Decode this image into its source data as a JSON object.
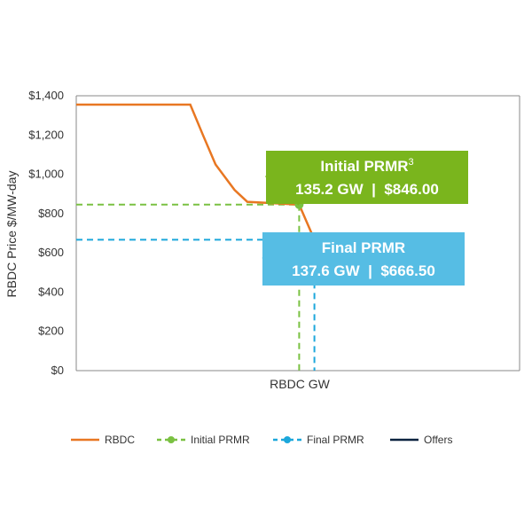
{
  "chart_data": {
    "type": "line",
    "xlabel": "RBDC GW",
    "ylabel": "RBDC Price $/MW-day",
    "ylim": [
      0,
      1400
    ],
    "xlim": [
      100,
      170
    ],
    "y_ticks": [
      0,
      200,
      400,
      600,
      800,
      1000,
      1200,
      1400
    ],
    "y_tick_labels": [
      "$0",
      "$200",
      "$400",
      "$600",
      "$800",
      "$1,000",
      "$1,200",
      "$1,400"
    ],
    "grid": false,
    "legend_position": "bottom",
    "series": [
      {
        "name": "RBDC",
        "color": "#E87722",
        "style": "solid",
        "points": [
          [
            100,
            1355
          ],
          [
            118,
            1355
          ],
          [
            120,
            1200
          ],
          [
            122,
            1050
          ],
          [
            125,
            920
          ],
          [
            127,
            860
          ],
          [
            135.2,
            846
          ],
          [
            137.6,
            666.5
          ]
        ]
      },
      {
        "name": "Offers",
        "color": "#0C2340",
        "style": "solid",
        "points": [
          [
            100,
            0
          ]
        ]
      }
    ],
    "legend": [
      {
        "label": "RBDC",
        "color": "#E87722",
        "style": "solid"
      },
      {
        "label": "Initial PRMR",
        "color": "#7AC142",
        "style": "dashed",
        "marker": "dot"
      },
      {
        "label": "Final PRMR",
        "color": "#1CA7DB",
        "style": "dashed",
        "marker": "dot"
      },
      {
        "label": "Offers",
        "color": "#0C2340",
        "style": "solid"
      }
    ],
    "annotations": {
      "initial": {
        "line1": "Initial PRMR",
        "sup": "3",
        "line2": "135.2 GW  |  $846.00",
        "x": 135.2,
        "y": 846,
        "color": "#7AB51D"
      },
      "final": {
        "line1": "Final PRMR",
        "line2": "137.6 GW  |  $666.50",
        "x": 137.6,
        "y": 666.5,
        "color": "#56BDE4"
      }
    }
  }
}
